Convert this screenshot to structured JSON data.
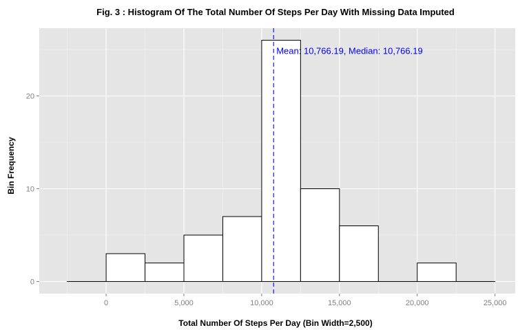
{
  "chart_data": {
    "type": "bar",
    "title": "Fig. 3 : Histogram Of The Total Number Of Steps Per Day With Missing Data Imputed",
    "xlabel": "Total Number Of Steps Per Day (Bin Width=2,500)",
    "ylabel": "Bin Frequency",
    "bin_width": 2500,
    "bins": [
      {
        "start": -2500,
        "end": 0,
        "count": 0
      },
      {
        "start": 0,
        "end": 2500,
        "count": 3
      },
      {
        "start": 2500,
        "end": 5000,
        "count": 2
      },
      {
        "start": 5000,
        "end": 7500,
        "count": 5
      },
      {
        "start": 7500,
        "end": 10000,
        "count": 7
      },
      {
        "start": 10000,
        "end": 12500,
        "count": 26
      },
      {
        "start": 12500,
        "end": 15000,
        "count": 10
      },
      {
        "start": 15000,
        "end": 17500,
        "count": 6
      },
      {
        "start": 17500,
        "end": 20000,
        "count": 0
      },
      {
        "start": 20000,
        "end": 22500,
        "count": 2
      },
      {
        "start": 22500,
        "end": 25000,
        "count": 0
      }
    ],
    "xlim": [
      -4300,
      26300
    ],
    "ylim": [
      -1.3,
      27.3
    ],
    "x_ticks": [
      0,
      5000,
      10000,
      15000,
      20000,
      25000
    ],
    "x_tick_labels": [
      "0",
      "5,000",
      "10,000",
      "15,000",
      "20,000",
      "25,000"
    ],
    "y_ticks": [
      0,
      10,
      20
    ],
    "y_tick_labels": [
      "0",
      "10",
      "20"
    ],
    "mean_line": {
      "value": 10766.19,
      "color": "#0000ff",
      "style": "dashed"
    },
    "annotation": {
      "text": "Mean: 10,766.19, Median: 10,766.19",
      "x": 10766.19,
      "y": 24.8,
      "color": "#0000ff"
    },
    "grid": true,
    "colors": {
      "panel": "#e5e5e5",
      "grid": "#ffffff",
      "bar_fill": "#ffffff",
      "bar_stroke": "#000000"
    }
  }
}
